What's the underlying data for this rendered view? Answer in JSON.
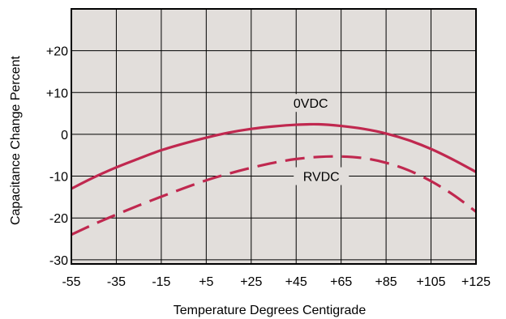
{
  "chart_data": {
    "type": "line",
    "title": "",
    "xlabel": "Temperature Degrees Centigrade",
    "ylabel": "Capacitance Change Percent",
    "xlim": [
      -55,
      125
    ],
    "ylim": [
      -31,
      30
    ],
    "grid": true,
    "x_ticks": [
      -55,
      -35,
      -15,
      5,
      25,
      45,
      65,
      85,
      105,
      125
    ],
    "x_tick_labels": [
      "-55",
      "-35",
      "-15",
      "+5",
      "+25",
      "+45",
      "+65",
      "+85",
      "+105",
      "+125"
    ],
    "y_ticks": [
      -30,
      -20,
      -10,
      0,
      10,
      20
    ],
    "y_tick_labels": [
      "-30",
      "-20",
      "-10",
      "0",
      "+10",
      "+20"
    ],
    "colors": {
      "plot_bg": "#e2dedb",
      "grid": "#000000",
      "series": "#c0284f"
    },
    "series": [
      {
        "name": "0VDC",
        "style": "solid",
        "x": [
          -55,
          -45,
          -35,
          -25,
          -15,
          -5,
          5,
          15,
          25,
          35,
          45,
          55,
          65,
          75,
          85,
          95,
          105,
          115,
          125
        ],
        "y": [
          -13,
          -10.3,
          -7.9,
          -5.8,
          -3.8,
          -2.2,
          -0.8,
          0.4,
          1.3,
          1.9,
          2.3,
          2.4,
          2.0,
          1.3,
          0.2,
          -1.4,
          -3.5,
          -6.1,
          -9.0
        ]
      },
      {
        "name": "RVDC",
        "style": "dashed",
        "x": [
          -55,
          -45,
          -35,
          -25,
          -15,
          -5,
          5,
          15,
          25,
          35,
          45,
          55,
          65,
          75,
          85,
          95,
          105,
          115,
          125
        ],
        "y": [
          -24,
          -21.5,
          -19.2,
          -17.0,
          -14.9,
          -12.9,
          -11.0,
          -9.4,
          -8.0,
          -6.8,
          -5.9,
          -5.4,
          -5.3,
          -5.7,
          -6.8,
          -8.6,
          -11.2,
          -14.5,
          -18.5
        ]
      }
    ]
  }
}
